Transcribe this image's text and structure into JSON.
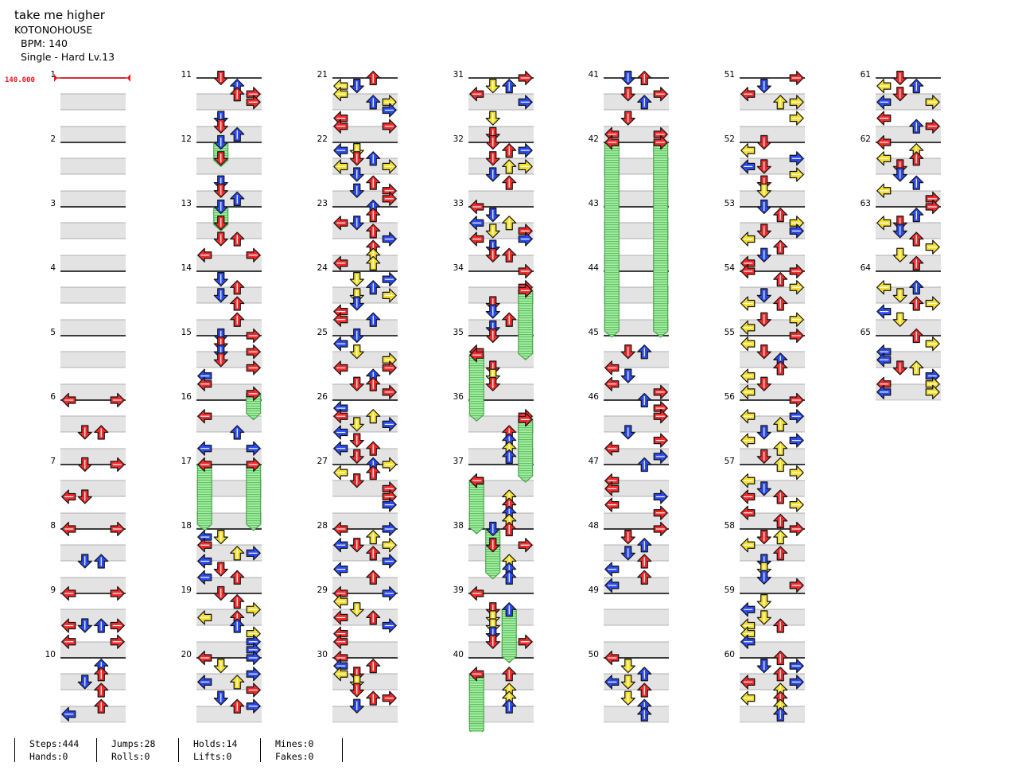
{
  "header": {
    "title": "take me higher",
    "artist": "KOTONOHOUSE",
    "bpm": "BPM: 140",
    "difficulty": "Single - Hard  Lv.13"
  },
  "bpm_marker": "140.000",
  "colors": {
    "red": "#f02a2a",
    "blue": "#2a4af0",
    "yellow": "#f5e030",
    "hold": "#8ee08e"
  },
  "measures": [
    "1",
    "2",
    "3",
    "4",
    "5",
    "6",
    "7",
    "8",
    "9",
    "10",
    "11",
    "12",
    "13",
    "14",
    "15",
    "16",
    "17",
    "18",
    "19",
    "20",
    "21",
    "22",
    "23",
    "24",
    "25",
    "26",
    "27",
    "28",
    "29",
    "30",
    "31",
    "32",
    "33",
    "34",
    "35",
    "36",
    "37",
    "38",
    "39",
    "40",
    "41",
    "42",
    "43",
    "44",
    "45",
    "46",
    "47",
    "48",
    "49",
    "50",
    "51",
    "52",
    "53",
    "54",
    "55",
    "56",
    "57",
    "58",
    "59",
    "60",
    "61",
    "62",
    "63",
    "64",
    "65"
  ],
  "stats": [
    {
      "top": "Steps:444",
      "bottom": "Hands:0"
    },
    {
      "top": "Jumps:28",
      "bottom": "Rolls:0"
    },
    {
      "top": "Holds:14",
      "bottom": "Lifts:0"
    },
    {
      "top": "Mines:0",
      "bottom": "Fakes:0"
    }
  ]
}
